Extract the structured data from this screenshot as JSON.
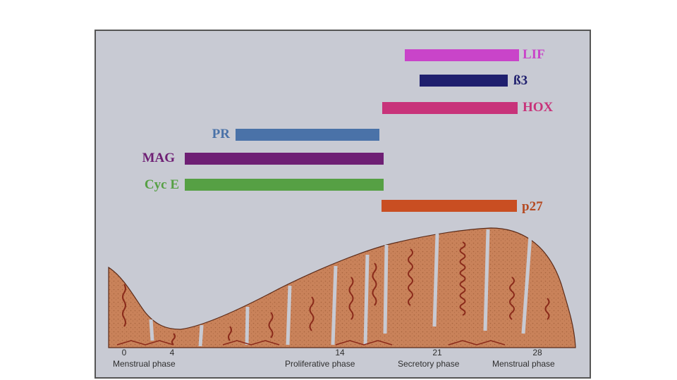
{
  "bars": [
    {
      "id": "lif",
      "label": "LIF",
      "color": "#c944c9",
      "label_color": "#c944c9"
    },
    {
      "id": "b3",
      "label": "ß3",
      "color": "#1f1f6e",
      "label_color": "#1f1f6e"
    },
    {
      "id": "hox",
      "label": "HOX",
      "color": "#c8337a",
      "label_color": "#c8337a"
    },
    {
      "id": "pr",
      "label": "PR",
      "color": "#4a72a8",
      "label_color": "#4a72a8"
    },
    {
      "id": "mag",
      "label": "MAG",
      "color": "#6e1f74",
      "label_color": "#6e1f74"
    },
    {
      "id": "cyce",
      "label": "Cyc E",
      "color": "#56a044",
      "label_color": "#56a044"
    },
    {
      "id": "p27",
      "label": "p27",
      "color": "#c94e22",
      "label_color": "#b54a22"
    }
  ],
  "axis": {
    "ticks": [
      "0",
      "4",
      "14",
      "21",
      "28"
    ],
    "phases": [
      "Menstrual phase",
      "Proliferative phase",
      "Secretory phase",
      "Menstrual phase"
    ]
  },
  "colors": {
    "tissue": "#c9825a",
    "tissue_dark": "#a8643e",
    "gland": "#8a2a1a",
    "background": "#c8cad3"
  }
}
